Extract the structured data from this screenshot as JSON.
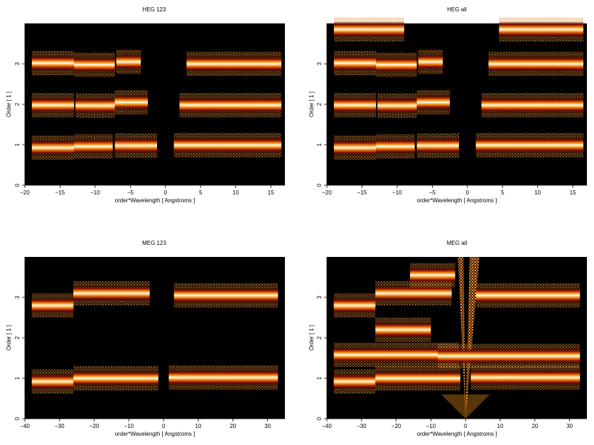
{
  "colors": {
    "background": "#000000",
    "colormap": [
      "#000000",
      "#3a0000",
      "#8b0d00",
      "#d44400",
      "#ff9a14",
      "#ffe27a",
      "#ffffff"
    ]
  },
  "chart_data": [
    {
      "type": "heatmap",
      "title": "HEG 123",
      "xlabel": "order*Wavelength [ Angstroms ]",
      "ylabel": "Order [ 1 ]",
      "xlim": [
        -20,
        17
      ],
      "ylim": [
        0,
        4
      ],
      "xticks": [
        -20,
        -15,
        -10,
        -5,
        0,
        5,
        10,
        15
      ],
      "yticks": [
        0,
        1,
        2,
        3
      ],
      "bands": [
        {
          "order": 1,
          "x": [
            -19,
            -13
          ],
          "core": 0.93
        },
        {
          "order": 1,
          "x": [
            -13,
            -7.5
          ],
          "core": 0.96
        },
        {
          "order": 1,
          "x": [
            -7.2,
            -1.2
          ],
          "core": 0.98
        },
        {
          "order": 1,
          "x": [
            1.2,
            16.5
          ],
          "core": 0.99
        },
        {
          "order": 2,
          "x": [
            -19,
            -13
          ],
          "core": 1.98
        },
        {
          "order": 2,
          "x": [
            -12.8,
            -7.2
          ],
          "core": 1.97
        },
        {
          "order": 2,
          "x": [
            -7.2,
            -2.5
          ],
          "core": 2.05
        },
        {
          "order": 2,
          "x": [
            2,
            16.5
          ],
          "core": 1.98
        },
        {
          "order": 3,
          "x": [
            -19,
            -13
          ],
          "core": 3.02
        },
        {
          "order": 3,
          "x": [
            -13,
            -7.2
          ],
          "core": 2.98
        },
        {
          "order": 3,
          "x": [
            -7,
            -3.5
          ],
          "core": 3.05
        },
        {
          "order": 3,
          "x": [
            3,
            16.5
          ],
          "core": 3.0
        }
      ]
    },
    {
      "type": "heatmap",
      "title": "HEG all",
      "xlabel": "order*Wavelength [ Angstroms ]",
      "ylabel": "Order [ 1 ]",
      "xlim": [
        -20,
        17
      ],
      "ylim": [
        0,
        4
      ],
      "xticks": [
        -20,
        -15,
        -10,
        -5,
        0,
        5,
        10,
        15
      ],
      "yticks": [
        0,
        1,
        2,
        3
      ],
      "bands": [
        {
          "order": 1,
          "x": [
            -19,
            -13
          ],
          "core": 0.93
        },
        {
          "order": 1,
          "x": [
            -13,
            -7.5
          ],
          "core": 0.96
        },
        {
          "order": 1,
          "x": [
            -7.2,
            -1.2
          ],
          "core": 0.98
        },
        {
          "order": 1,
          "x": [
            1.2,
            16.5
          ],
          "core": 0.99
        },
        {
          "order": 2,
          "x": [
            -19,
            -13
          ],
          "core": 1.98
        },
        {
          "order": 2,
          "x": [
            -12.8,
            -7.2
          ],
          "core": 1.97
        },
        {
          "order": 2,
          "x": [
            -7.2,
            -2.5
          ],
          "core": 2.05
        },
        {
          "order": 2,
          "x": [
            2,
            16.5
          ],
          "core": 1.98
        },
        {
          "order": 3,
          "x": [
            -19,
            -13
          ],
          "core": 3.02
        },
        {
          "order": 3,
          "x": [
            -13,
            -7.2
          ],
          "core": 2.98
        },
        {
          "order": 3,
          "x": [
            -7,
            -3.5
          ],
          "core": 3.05
        },
        {
          "order": 3,
          "x": [
            3,
            16.5
          ],
          "core": 3.0
        },
        {
          "order": 4,
          "x": [
            -19,
            -9
          ],
          "core": 3.85
        },
        {
          "order": 4,
          "x": [
            4.5,
            16.5
          ],
          "core": 3.85
        }
      ]
    },
    {
      "type": "heatmap",
      "title": "MEG 123",
      "xlabel": "order*Wavelength [ Angstroms ]",
      "ylabel": "Order [ 1 ]",
      "xlim": [
        -40,
        35
      ],
      "ylim": [
        0,
        4
      ],
      "xticks": [
        -40,
        -30,
        -20,
        -10,
        0,
        10,
        20,
        30
      ],
      "yticks": [
        0,
        1,
        2,
        3
      ],
      "bands": [
        {
          "order": 1,
          "x": [
            -38,
            -26
          ],
          "core": 0.92
        },
        {
          "order": 1,
          "x": [
            -26,
            -1.5
          ],
          "core": 1.0
        },
        {
          "order": 1,
          "x": [
            1.5,
            33
          ],
          "core": 1.02
        },
        {
          "order": 3,
          "x": [
            -38,
            -26
          ],
          "core": 2.8
        },
        {
          "order": 3,
          "x": [
            -26,
            -4
          ],
          "core": 3.1
        },
        {
          "order": 3,
          "x": [
            3,
            33
          ],
          "core": 3.05
        }
      ]
    },
    {
      "type": "heatmap",
      "title": "MEG all",
      "xlabel": "order*Wavelength [ Angstroms ]",
      "ylabel": "Order [ 1 ]",
      "xlim": [
        -40,
        35
      ],
      "ylim": [
        0,
        4
      ],
      "xticks": [
        -40,
        -30,
        -20,
        -10,
        0,
        10,
        20,
        30
      ],
      "yticks": [
        0,
        1,
        2,
        3
      ],
      "bands": [
        {
          "order": 1,
          "x": [
            -38,
            -26
          ],
          "core": 0.92
        },
        {
          "order": 1,
          "x": [
            -26,
            -1.5
          ],
          "core": 1.0
        },
        {
          "order": 1,
          "x": [
            1.5,
            33
          ],
          "core": 1.02
        },
        {
          "order": 1.6,
          "x": [
            -38,
            -2
          ],
          "core": 1.58
        },
        {
          "order": 1.6,
          "x": [
            -8,
            33
          ],
          "core": 1.55
        },
        {
          "order": 2.2,
          "x": [
            -26,
            -10
          ],
          "core": 2.2
        },
        {
          "order": 3,
          "x": [
            -38,
            -26
          ],
          "core": 2.8
        },
        {
          "order": 3,
          "x": [
            -26,
            -4
          ],
          "core": 3.1
        },
        {
          "order": 3,
          "x": [
            3,
            33
          ],
          "core": 3.05
        },
        {
          "order": 3.5,
          "x": [
            -16,
            -3
          ],
          "core": 3.55
        }
      ]
    }
  ]
}
